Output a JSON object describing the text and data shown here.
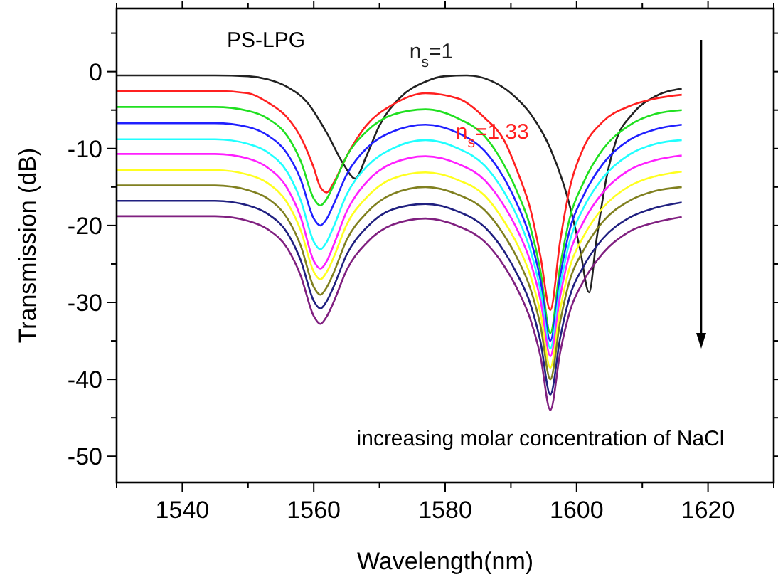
{
  "chart_data": {
    "type": "line",
    "xlabel": "Wavelength(nm)",
    "ylabel": "Transmission (dB)",
    "xlim": [
      1530,
      1630
    ],
    "ylim": [
      -53.4,
      8.2
    ],
    "xticks": [
      {
        "value": 1530,
        "label": null
      },
      1540,
      {
        "value": 1550,
        "label": null
      },
      1560,
      {
        "value": 1570,
        "label": null
      },
      1580,
      {
        "value": 1590,
        "label": null
      },
      1600,
      {
        "value": 1610,
        "label": null
      },
      1620,
      {
        "value": 1630,
        "label": null
      }
    ],
    "yticks": [
      {
        "value": 5,
        "label": null
      },
      0,
      {
        "value": -5,
        "label": null
      },
      -10,
      {
        "value": -15,
        "label": null
      },
      -20,
      {
        "value": -25,
        "label": null
      },
      -30,
      {
        "value": -35,
        "label": null
      },
      -40,
      {
        "value": -45,
        "label": null
      },
      -50
    ],
    "grid": false,
    "annotations": [
      "PS-LPG",
      "increasing molar concentration of NaCl"
    ],
    "x": [
      1530,
      1545,
      1550,
      1553,
      1556,
      1558,
      1560,
      1561,
      1562,
      1563,
      1565,
      1568,
      1572,
      1577,
      1582,
      1586,
      1589,
      1591,
      1593,
      1594.5,
      1596,
      1597.5,
      1599,
      1601,
      1604,
      1608,
      1612,
      1616
    ],
    "series": [
      {
        "name": "n$_{s}$=1",
        "color": "#222222",
        "x": [
          1530,
          1545,
          1550,
          1553,
          1556,
          1559,
          1562,
          1564.5,
          1566.3,
          1568,
          1570,
          1573,
          1577,
          1580,
          1583.3,
          1587,
          1590,
          1593,
          1596,
          1598.5,
          1600.5,
          1601.9,
          1603,
          1604.5,
          1606,
          1608.5,
          1612,
          1616
        ],
        "values": [
          -0.5,
          -0.5,
          -0.6,
          -1,
          -2,
          -4,
          -8,
          -12,
          -13.9,
          -11,
          -7,
          -3.5,
          -1.3,
          -0.6,
          -0.5,
          -1.2,
          -2.8,
          -5.5,
          -10,
          -16,
          -23,
          -28.7,
          -22,
          -14,
          -9,
          -5.5,
          -3.2,
          -2.2
        ]
      },
      {
        "name": "n$_{s}$=1.33",
        "color": "#ff2020",
        "values": [
          -2.5,
          -2.5,
          -2.8,
          -4,
          -6,
          -8.5,
          -12.5,
          -15,
          -15.7,
          -14.5,
          -11,
          -7,
          -4.3,
          -2.8,
          -3.5,
          -6,
          -9,
          -13,
          -18,
          -24,
          -31,
          -22,
          -15,
          -10,
          -6.5,
          -4.5,
          -3.5,
          -3
        ]
      },
      {
        "color": "#20e020",
        "values": [
          -4.6,
          -4.6,
          -5.1,
          -6.1,
          -8.4,
          -11.6,
          -16.5,
          -17.4,
          -16.5,
          -14.8,
          -11,
          -7.8,
          -5.6,
          -4.9,
          -6.1,
          -8.4,
          -12.2,
          -15.7,
          -20.3,
          -25.9,
          -34,
          -25.3,
          -18.9,
          -14.5,
          -10.1,
          -7,
          -5.5,
          -5
        ]
      },
      {
        "color": "#2020ff",
        "values": [
          -6.7,
          -6.7,
          -7.2,
          -8.3,
          -10.7,
          -14,
          -19.1,
          -20,
          -19.1,
          -17.3,
          -13.4,
          -10,
          -7.8,
          -6.9,
          -8,
          -10.3,
          -13.9,
          -17.3,
          -21.8,
          -27.1,
          -35,
          -26.6,
          -20.4,
          -16.2,
          -12,
          -8.9,
          -7.5,
          -6.9
        ]
      },
      {
        "color": "#20ffff",
        "values": [
          -8.8,
          -8.8,
          -9.4,
          -10.5,
          -13.1,
          -16.7,
          -22.1,
          -23.1,
          -22.1,
          -20.2,
          -16,
          -12.4,
          -10,
          -8.9,
          -10,
          -12.2,
          -15.7,
          -18.9,
          -23.3,
          -28.4,
          -36,
          -27.9,
          -21.9,
          -17.8,
          -13.8,
          -10.8,
          -9.4,
          -8.9
        ]
      },
      {
        "color": "#ff20ff",
        "values": [
          -10.7,
          -10.7,
          -11.3,
          -12.5,
          -15.2,
          -18.9,
          -24.6,
          -25.6,
          -24.6,
          -22.6,
          -18.2,
          -14.4,
          -11.9,
          -11,
          -12,
          -14.1,
          -17.5,
          -20.6,
          -24.8,
          -29.7,
          -37,
          -29.2,
          -23.5,
          -19.6,
          -15.7,
          -12.8,
          -11.5,
          -10.9
        ]
      },
      {
        "color": "#ffff20",
        "values": [
          -12.8,
          -12.8,
          -13.4,
          -14.5,
          -17.1,
          -20.6,
          -26,
          -27,
          -26,
          -24.2,
          -19.9,
          -16.4,
          -13.9,
          -13.1,
          -14.1,
          -16.1,
          -19.5,
          -22.5,
          -26.6,
          -31.4,
          -38.5,
          -30.9,
          -25.3,
          -21.5,
          -17.7,
          -14.9,
          -13.6,
          -13
        ]
      },
      {
        "color": "#808020",
        "values": [
          -14.8,
          -14.8,
          -15.4,
          -16.5,
          -19.1,
          -22.6,
          -28,
          -29,
          -28,
          -26.2,
          -21.9,
          -18.4,
          -15.9,
          -15,
          -16,
          -18,
          -21.3,
          -24.3,
          -28.3,
          -33,
          -40,
          -32.5,
          -27,
          -23.3,
          -19.5,
          -16.8,
          -15.5,
          -15
        ]
      },
      {
        "color": "#202080",
        "values": [
          -16.8,
          -16.8,
          -17.4,
          -18.5,
          -21,
          -24.5,
          -29.8,
          -30.8,
          -29.8,
          -28,
          -23.8,
          -20.3,
          -17.9,
          -17.2,
          -18.2,
          -20.2,
          -23.4,
          -26.4,
          -30.3,
          -35.1,
          -42,
          -34.6,
          -29.1,
          -25.4,
          -21.7,
          -19,
          -17.7,
          -17
        ]
      },
      {
        "color": "#802080",
        "values": [
          -18.8,
          -18.8,
          -19.4,
          -20.5,
          -23,
          -26.5,
          -31.8,
          -32.8,
          -31.8,
          -30,
          -25.8,
          -22.3,
          -19.9,
          -19.1,
          -20.1,
          -22.1,
          -25.3,
          -28.3,
          -32.3,
          -37,
          -44,
          -36.5,
          -31.1,
          -27.3,
          -23.6,
          -20.8,
          -19.6,
          -18.9
        ]
      }
    ]
  }
}
